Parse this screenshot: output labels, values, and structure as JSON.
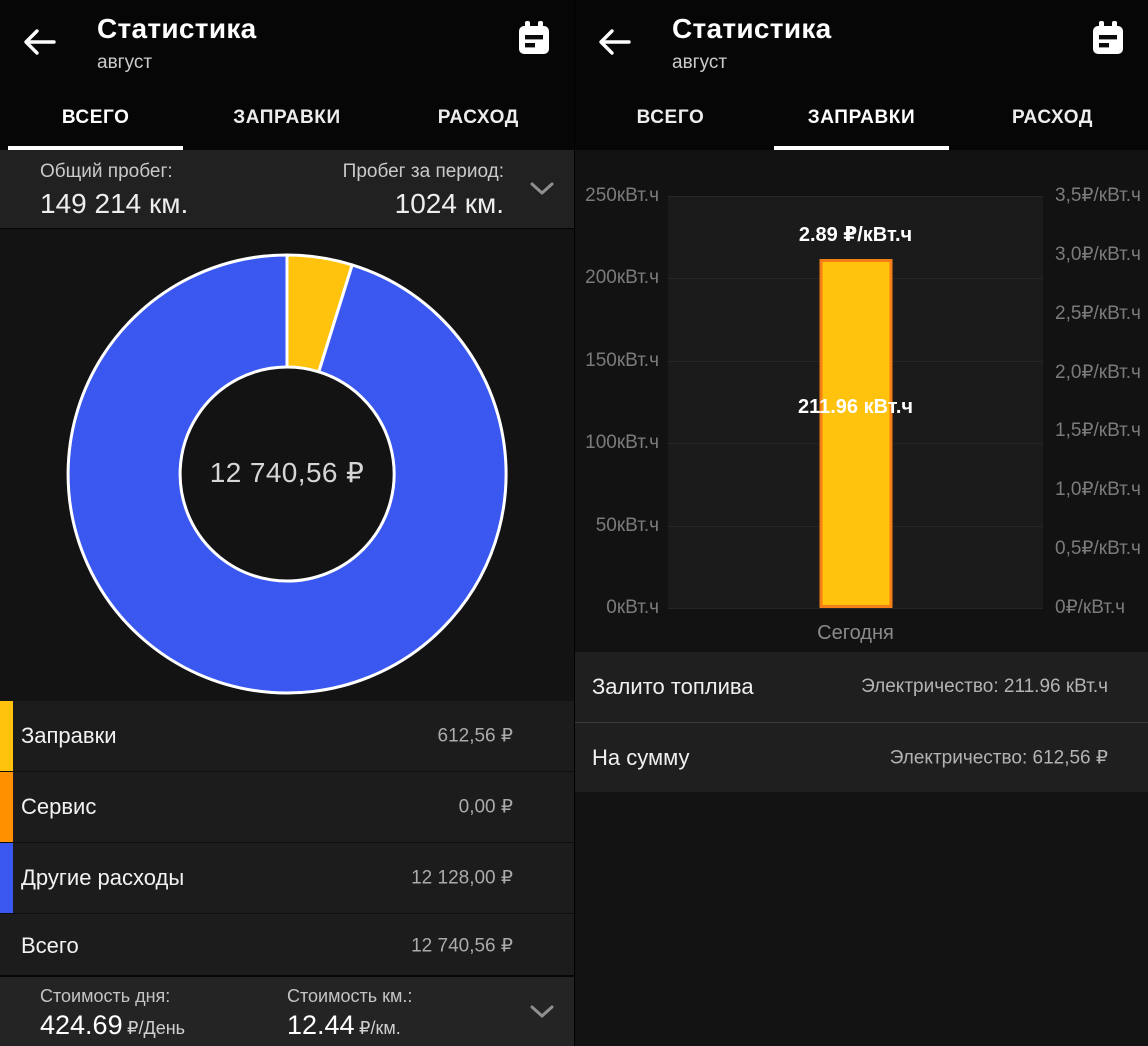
{
  "header": {
    "title": "Статистика",
    "subtitle": "август"
  },
  "tabs": [
    "ВСЕГО",
    "ЗАПРАВКИ",
    "РАСХОД"
  ],
  "left": {
    "mileage": {
      "total_label": "Общий пробег:",
      "total_value": "149 214 км.",
      "period_label": "Пробег за период:",
      "period_value": "1024 км."
    },
    "donut_center": "12 740,56 ₽",
    "legend": [
      {
        "label": "Заправки",
        "value": "612,56 ₽",
        "color": "#FFC30D"
      },
      {
        "label": "Сервис",
        "value": "0,00 ₽",
        "color": "#FF9100"
      },
      {
        "label": "Другие расходы",
        "value": "12 128,00 ₽",
        "color": "#3A58EF"
      }
    ],
    "total_row": {
      "label": "Всего",
      "value": "12 740,56 ₽"
    },
    "footer": {
      "day_label": "Стоимость дня:",
      "day_value": "424.69",
      "day_unit": "₽/День",
      "km_label": "Стоимость км.:",
      "km_value": "12.44",
      "km_unit": "₽/км."
    }
  },
  "right": {
    "bar_price_label": "2.89 ₽/кВт.ч",
    "bar_value_label": "211.96 кВт.ч",
    "x_label": "Сегодня",
    "rows": [
      {
        "label": "Залито топлива",
        "value": "Электричество: 211.96 кВт.ч"
      },
      {
        "label": "На сумму",
        "value": "Электричество: 612,56 ₽"
      }
    ]
  },
  "chart_data": [
    {
      "type": "pie",
      "donut": true,
      "labels": [
        "Заправки",
        "Сервис",
        "Другие расходы"
      ],
      "values": [
        612.56,
        0.0,
        12128.0
      ],
      "total": 12740.56,
      "center_label": "12 740,56 ₽",
      "colors": [
        "#FFC30D",
        "#FF9100",
        "#3A58EF"
      ],
      "legend_position": "bottom",
      "start_angle_deg": 0,
      "stroke": "#ffffff"
    },
    {
      "type": "bar",
      "categories": [
        "Сегодня"
      ],
      "values": [
        211.96
      ],
      "bar_value_labels": [
        "211.96 кВт.ч"
      ],
      "bar_annotations": [
        "2.89 ₽/кВт.ч"
      ],
      "price_values": [
        2.89
      ],
      "y_left": {
        "min": 0,
        "max": 250,
        "ticks": [
          "250кВт.ч",
          "200кВт.ч",
          "150кВт.ч",
          "100кВт.ч",
          "50кВт.ч",
          "0кВт.ч"
        ]
      },
      "y_right": {
        "min": 0,
        "max": 3.5,
        "ticks": [
          "3,5₽/кВт.ч",
          "3,0₽/кВт.ч",
          "2,5₽/кВт.ч",
          "2,0₽/кВт.ч",
          "1,5₽/кВт.ч",
          "1,0₽/кВт.ч",
          "0,5₽/кВт.ч",
          "0₽/кВт.ч"
        ]
      },
      "grid": true,
      "bar_color": "#FFC30D",
      "bar_border_color": "#F57F17"
    }
  ]
}
